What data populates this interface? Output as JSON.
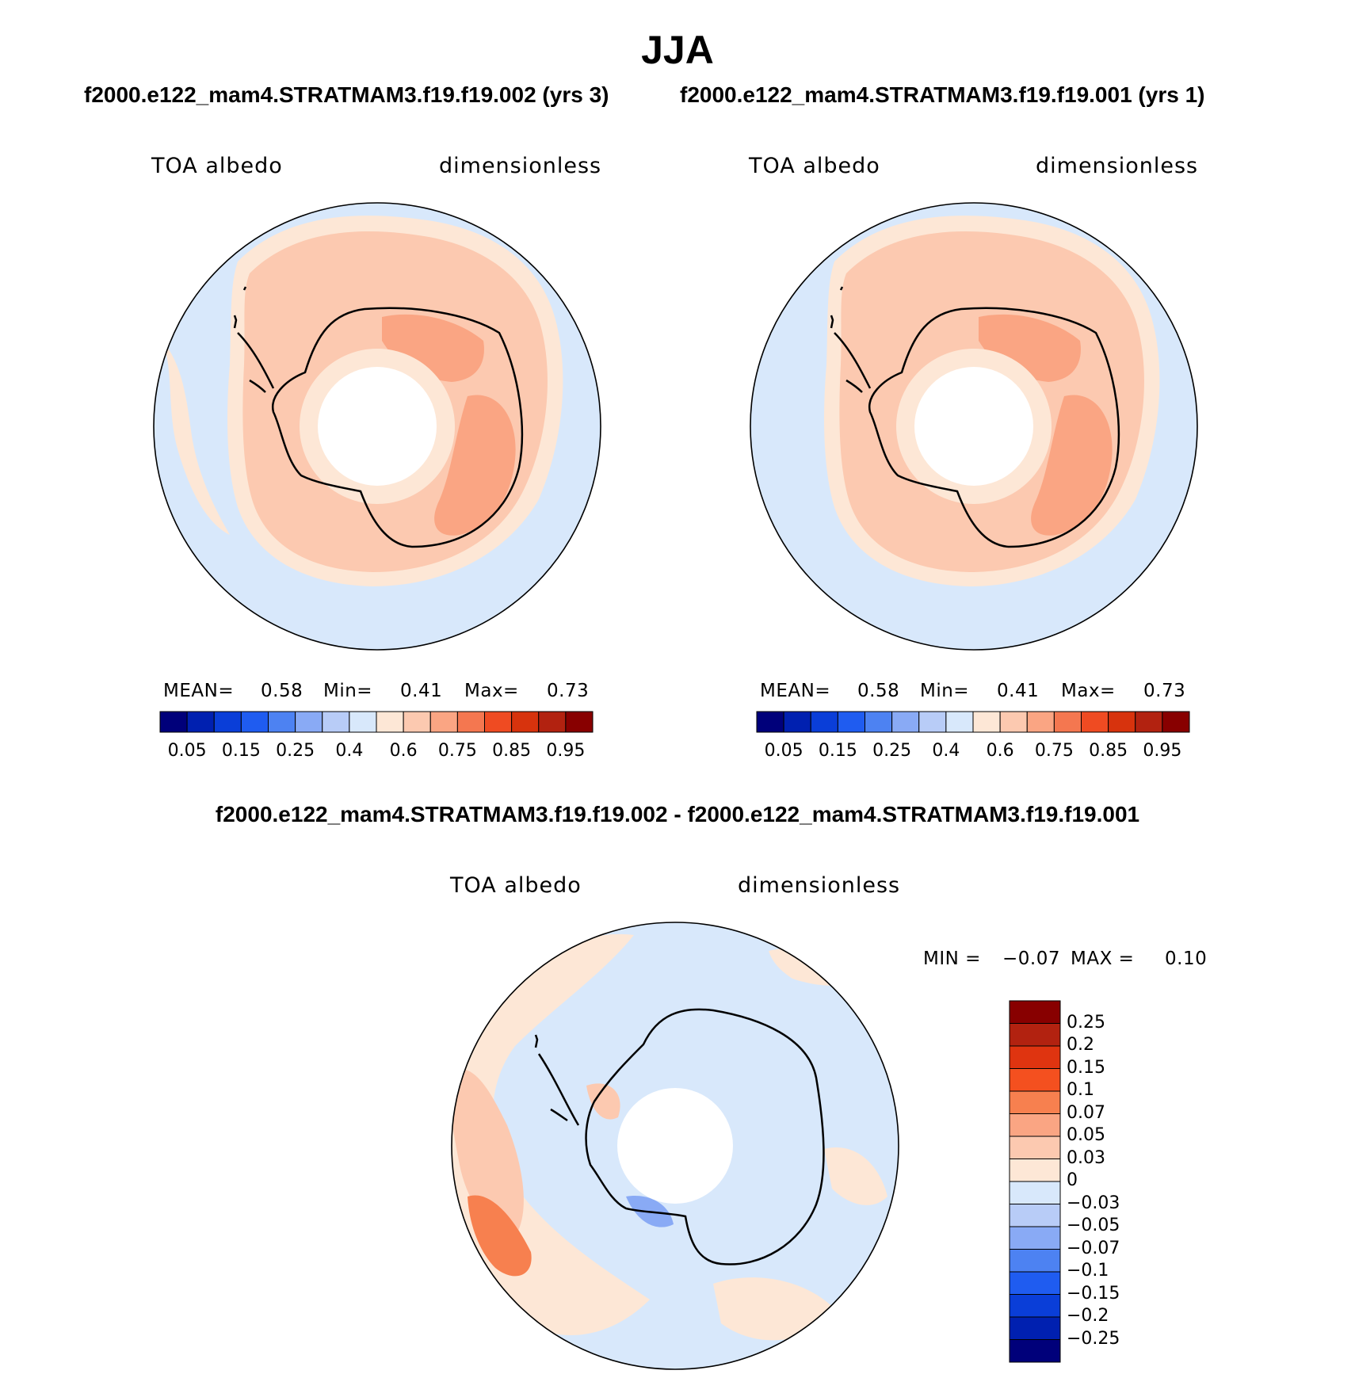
{
  "title": "JJA",
  "panels": [
    {
      "case_title": "f2000.e122_mam4.STRATMAM3.f19.f19.002 (yrs 3)",
      "variable": "TOA albedo",
      "units": "dimensionless",
      "stats": {
        "mean_label": "MEAN=",
        "mean": "0.58",
        "min_label": "Min=",
        "min": "0.41",
        "max_label": "Max=",
        "max": "0.73"
      }
    },
    {
      "case_title": "f2000.e122_mam4.STRATMAM3.f19.f19.001 (yrs 1)",
      "variable": "TOA albedo",
      "units": "dimensionless",
      "stats": {
        "mean_label": "MEAN=",
        "mean": "0.58",
        "min_label": "Min=",
        "min": "0.41",
        "max_label": "Max=",
        "max": "0.73"
      }
    }
  ],
  "colorbar_top": {
    "colors": [
      "#00007a",
      "#0020b0",
      "#0a3ed8",
      "#1f5cf0",
      "#4d82f2",
      "#89aaf5",
      "#b8ccf7",
      "#d8e8fb",
      "#fde7d6",
      "#fcc9b0",
      "#faa583",
      "#f47750",
      "#ef4b22",
      "#d7330d",
      "#b22210",
      "#880000"
    ],
    "tick_labels": [
      "0.05",
      "0.15",
      "0.25",
      "0.4",
      "0.6",
      "0.75",
      "0.85",
      "0.95"
    ]
  },
  "difference": {
    "title": "f2000.e122_mam4.STRATMAM3.f19.f19.002 - f2000.e122_mam4.STRATMAM3.f19.f19.001",
    "variable": "TOA albedo",
    "units": "dimensionless",
    "min_label": "MIN =",
    "min": "−0.07",
    "max_label": "MAX =",
    "max": "0.10",
    "colorbar": {
      "colors": [
        "#880000",
        "#b22210",
        "#df3410",
        "#f4501f",
        "#f7804f",
        "#faa583",
        "#fcc9b0",
        "#fde7d6",
        "#d8e8fb",
        "#b8ccf7",
        "#89aaf5",
        "#4d82f2",
        "#1f5cf0",
        "#0a3ed8",
        "#0020b0",
        "#00007a"
      ],
      "labels": [
        "0.25",
        "0.2",
        "0.15",
        "0.1",
        "0.07",
        "0.05",
        "0.03",
        "0",
        "−0.03",
        "−0.05",
        "−0.07",
        "−0.1",
        "−0.15",
        "−0.2",
        "−0.25"
      ]
    }
  }
}
